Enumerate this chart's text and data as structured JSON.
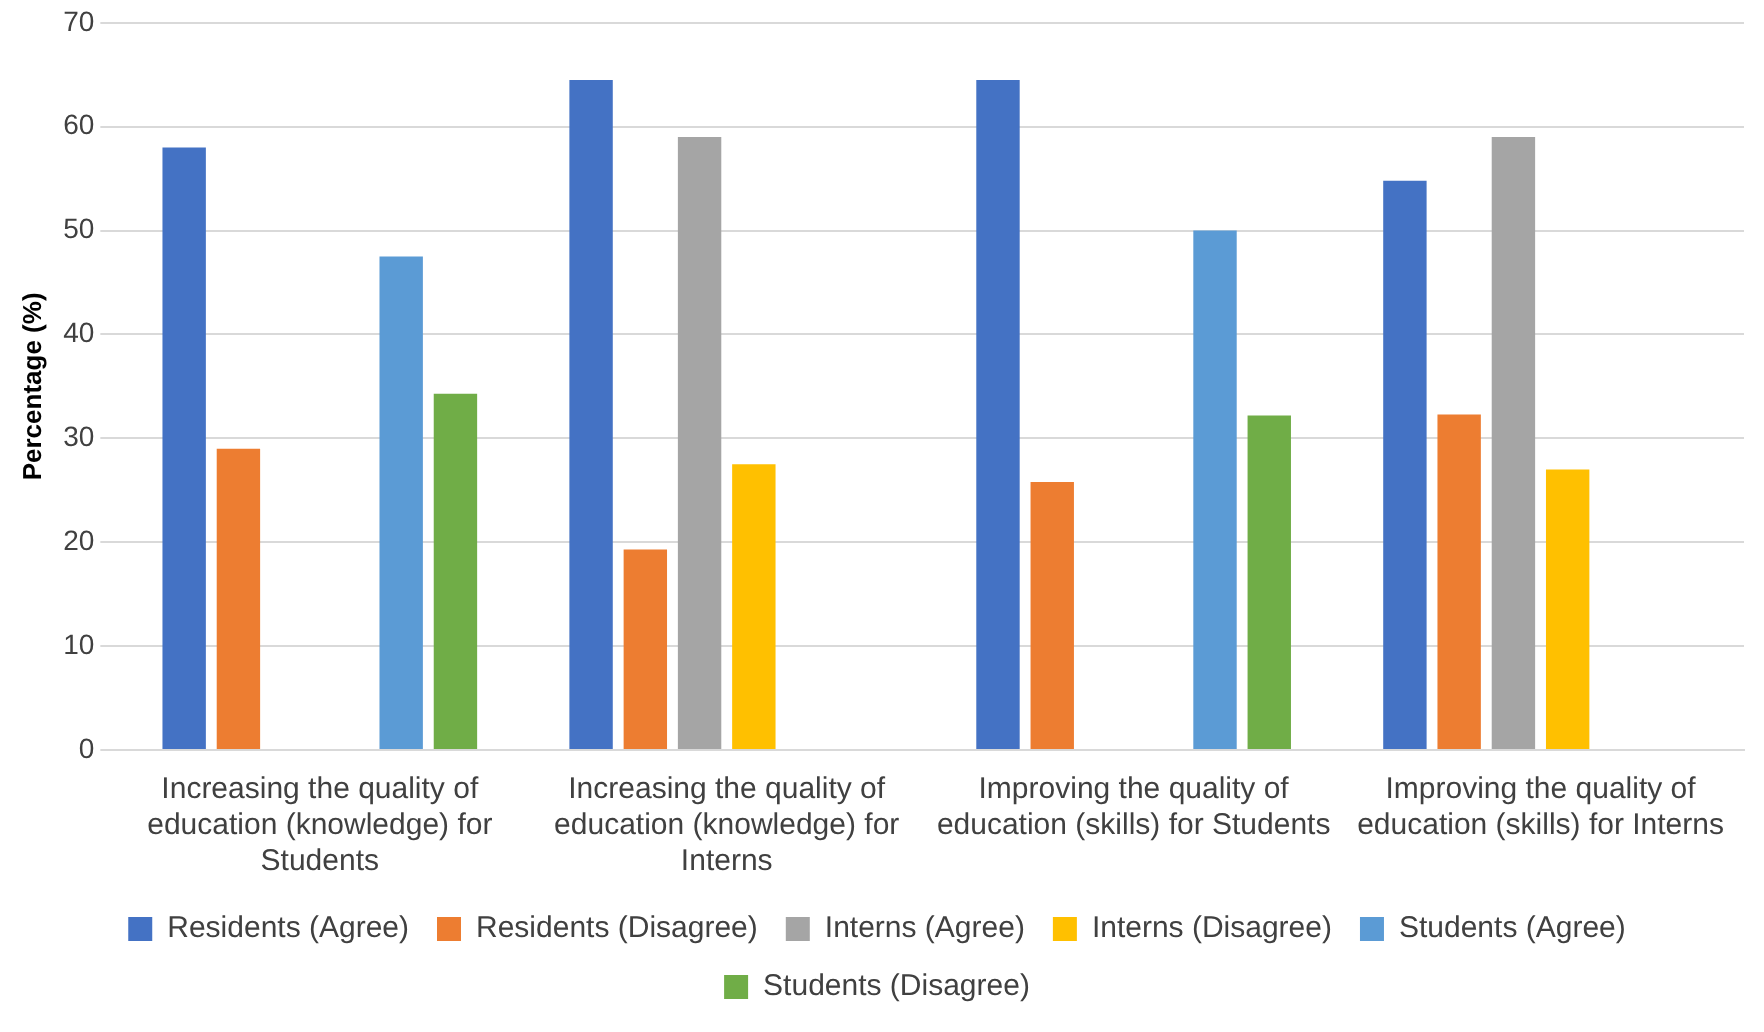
{
  "chart_data": {
    "type": "bar",
    "ylabel": "Percentage (%)",
    "categories": [
      "Increasing the quality of education (knowledge) for Students",
      "Increasing the quality of education (knowledge) for Interns",
      "Improving the quality of education (skills) for Students",
      "Improving the quality of education (skills) for Interns"
    ],
    "series": [
      {
        "name": "Residents (Agree)",
        "color": "#4472c4",
        "values": [
          58,
          64.5,
          64.5,
          54.8
        ]
      },
      {
        "name": "Residents (Disagree)",
        "color": "#ed7d31",
        "values": [
          29,
          19.3,
          25.8,
          32.3
        ]
      },
      {
        "name": "Interns (Agree)",
        "color": "#a5a5a5",
        "values": [
          null,
          59,
          null,
          59
        ]
      },
      {
        "name": "Interns (Disagree)",
        "color": "#ffc000",
        "values": [
          null,
          27.5,
          null,
          27
        ]
      },
      {
        "name": "Students (Agree)",
        "color": "#5b9bd5",
        "values": [
          47.5,
          null,
          50,
          null
        ]
      },
      {
        "name": "Students (Disagree)",
        "color": "#70ad47",
        "values": [
          34.3,
          null,
          32.2,
          null
        ]
      }
    ],
    "ylim": [
      0,
      70
    ],
    "yticks": [
      0,
      10,
      20,
      30,
      40,
      50,
      60,
      70
    ],
    "grid": "y",
    "legend": "bottom"
  }
}
